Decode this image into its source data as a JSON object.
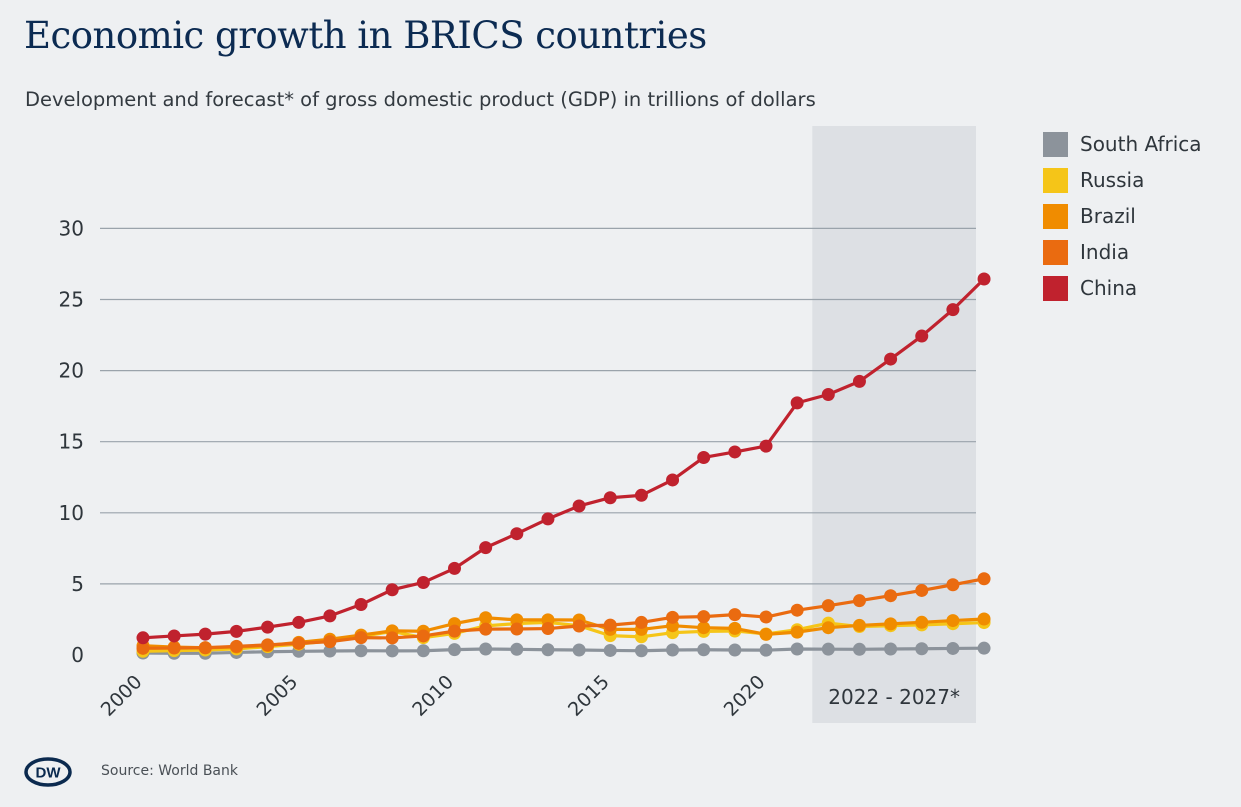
{
  "header": {
    "title": "Economic growth in BRICS countries",
    "subtitle": "Development and forecast* of gross domestic product (GDP) in trillions of dollars"
  },
  "footer": {
    "source": "Source: World Bank",
    "logo_text": "DW"
  },
  "forecast_label": "2022 - 2027*",
  "chart_data": {
    "type": "line",
    "title": "Economic growth in BRICS countries",
    "subtitle": "Development and forecast* of gross domestic product (GDP) in trillions of dollars",
    "xlabel": "",
    "ylabel": "",
    "x": [
      2000,
      2001,
      2002,
      2003,
      2004,
      2005,
      2006,
      2007,
      2008,
      2009,
      2010,
      2011,
      2012,
      2013,
      2014,
      2015,
      2016,
      2017,
      2018,
      2019,
      2020,
      2021,
      2022,
      2023,
      2024,
      2025,
      2026,
      2027
    ],
    "xticks": [
      "2000",
      "2005",
      "2010",
      "2015",
      "2020"
    ],
    "yticks": [
      "0",
      "5",
      "10",
      "15",
      "20",
      "25",
      "30"
    ],
    "ylim": [
      0,
      30
    ],
    "forecast_range": [
      2022,
      2027
    ],
    "grid": true,
    "legend_position": "top-right",
    "series": [
      {
        "name": "South Africa",
        "color": "#8c939b",
        "values": [
          0.14,
          0.12,
          0.12,
          0.18,
          0.23,
          0.26,
          0.28,
          0.3,
          0.29,
          0.3,
          0.38,
          0.42,
          0.4,
          0.37,
          0.35,
          0.32,
          0.3,
          0.35,
          0.37,
          0.35,
          0.34,
          0.42,
          0.41,
          0.4,
          0.42,
          0.44,
          0.46,
          0.48
        ]
      },
      {
        "name": "Russia",
        "color": "#f5c518",
        "values": [
          0.26,
          0.31,
          0.35,
          0.43,
          0.59,
          0.76,
          0.99,
          1.3,
          1.66,
          1.22,
          1.52,
          2.05,
          2.21,
          2.29,
          2.06,
          1.36,
          1.28,
          1.57,
          1.66,
          1.69,
          1.48,
          1.78,
          2.24,
          2.0,
          2.06,
          2.12,
          2.2,
          2.28
        ]
      },
      {
        "name": "Brazil",
        "color": "#f08c00",
        "values": [
          0.65,
          0.56,
          0.51,
          0.56,
          0.67,
          0.89,
          1.11,
          1.4,
          1.7,
          1.67,
          2.21,
          2.62,
          2.47,
          2.47,
          2.46,
          1.8,
          1.8,
          2.06,
          1.92,
          1.87,
          1.45,
          1.61,
          1.92,
          2.08,
          2.19,
          2.3,
          2.42,
          2.53
        ]
      },
      {
        "name": "India",
        "color": "#ea6b10",
        "values": [
          0.47,
          0.49,
          0.51,
          0.61,
          0.71,
          0.82,
          0.94,
          1.22,
          1.2,
          1.34,
          1.68,
          1.82,
          1.83,
          1.86,
          2.04,
          2.1,
          2.29,
          2.65,
          2.7,
          2.84,
          2.67,
          3.15,
          3.47,
          3.82,
          4.17,
          4.54,
          4.94,
          5.36
        ]
      },
      {
        "name": "China",
        "color": "#c0222e",
        "values": [
          1.21,
          1.34,
          1.47,
          1.66,
          1.96,
          2.29,
          2.75,
          3.55,
          4.59,
          5.1,
          6.09,
          7.55,
          8.53,
          9.57,
          10.48,
          11.06,
          11.23,
          12.31,
          13.89,
          14.28,
          14.69,
          17.73,
          18.32,
          19.24,
          20.81,
          22.43,
          24.29,
          26.44
        ]
      }
    ]
  }
}
